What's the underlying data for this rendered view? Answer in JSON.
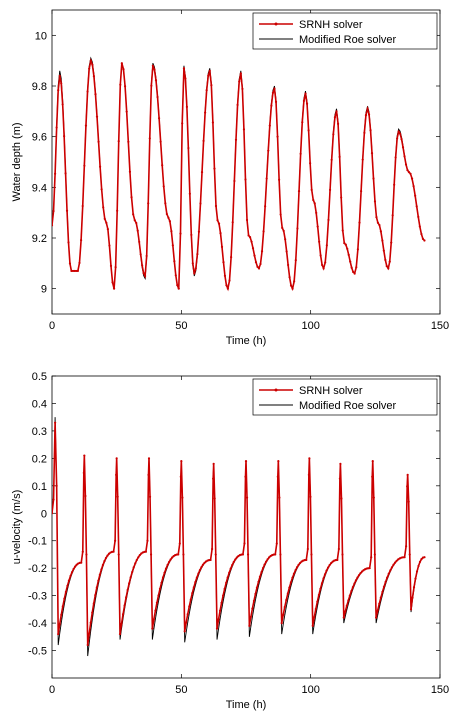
{
  "colors": {
    "srnh": "#cc0000",
    "roe": "#000000",
    "axis": "#000000",
    "background": "#ffffff"
  },
  "chart_data": [
    {
      "type": "line",
      "xlabel": "Time (h)",
      "ylabel": "Water depth (m)",
      "xlim": [
        0,
        150
      ],
      "ylim": [
        8.9,
        10.1
      ],
      "xticks": [
        0,
        50,
        100,
        150
      ],
      "yticks": [
        9,
        9.2,
        9.4,
        9.6,
        9.8,
        10
      ],
      "x_tick_labels": [
        "0",
        "50",
        "100",
        "150"
      ],
      "y_tick_labels": [
        "9",
        "9.2",
        "9.4",
        "9.6",
        "9.8",
        "10"
      ],
      "grid": false,
      "legend_position": "top-right",
      "x_end": 144,
      "series": [
        {
          "name": "SRNH solver",
          "style": "line-with-dot-markers",
          "x": [
            0,
            3,
            7.5,
            10,
            15,
            21,
            24,
            27,
            32,
            36,
            39,
            45,
            49,
            51,
            55,
            61,
            64,
            68,
            73,
            76,
            80,
            86,
            89,
            93,
            98,
            101,
            105,
            110,
            113,
            117,
            122,
            126,
            130,
            134,
            138,
            144
          ],
          "y": [
            9.25,
            9.84,
            9.07,
            9.07,
            9.9,
            9.26,
            9.0,
            9.89,
            9.27,
            9.05,
            9.88,
            9.28,
            9.0,
            9.87,
            9.06,
            9.86,
            9.27,
            9.0,
            9.85,
            9.21,
            9.08,
            9.79,
            9.24,
            9.0,
            9.77,
            9.35,
            9.08,
            9.7,
            9.18,
            9.06,
            9.71,
            9.26,
            9.08,
            9.62,
            9.46,
            9.19
          ]
        },
        {
          "name": "Modified Roe solver",
          "style": "solid-line",
          "x": [
            0,
            3,
            7.5,
            10,
            15,
            21,
            24,
            27,
            32,
            36,
            39,
            45,
            49,
            51,
            55,
            61,
            64,
            68,
            73,
            76,
            80,
            86,
            89,
            93,
            98,
            101,
            105,
            110,
            113,
            117,
            122,
            126,
            130,
            134,
            138,
            144
          ],
          "y": [
            9.25,
            9.86,
            9.07,
            9.07,
            9.91,
            9.26,
            9.0,
            9.89,
            9.27,
            9.04,
            9.89,
            9.28,
            9.0,
            9.88,
            9.05,
            9.87,
            9.27,
            9.0,
            9.86,
            9.21,
            9.08,
            9.8,
            9.24,
            9.0,
            9.78,
            9.35,
            9.08,
            9.71,
            9.18,
            9.06,
            9.72,
            9.26,
            9.08,
            9.63,
            9.46,
            9.19
          ]
        }
      ]
    },
    {
      "type": "line",
      "xlabel": "Time (h)",
      "ylabel": "u-velocity (m/s)",
      "xlim": [
        0,
        150
      ],
      "ylim": [
        -0.6,
        0.5
      ],
      "xticks": [
        0,
        50,
        100,
        150
      ],
      "yticks": [
        -0.5,
        -0.4,
        -0.3,
        -0.2,
        -0.1,
        0,
        0.1,
        0.2,
        0.3,
        0.4,
        0.5
      ],
      "x_tick_labels": [
        "0",
        "50",
        "100",
        "150"
      ],
      "y_tick_labels": [
        "-0.5",
        "-0.4",
        "-0.3",
        "-0.2",
        "-0.1",
        "0",
        "0.1",
        "0.2",
        "0.3",
        "0.4",
        "0.5"
      ],
      "grid": false,
      "legend_position": "top-right",
      "spike_times": [
        12.5,
        25,
        37.5,
        50,
        62.5,
        75,
        87.5,
        99.5,
        111.5,
        124,
        137.5
      ],
      "spike_peaks": [
        0.21,
        0.2,
        0.2,
        0.19,
        0.18,
        0.19,
        0.19,
        0.2,
        0.18,
        0.19,
        0.14
      ],
      "series": [
        {
          "name": "SRNH solver",
          "style": "line-with-dot-markers",
          "initial_peak": 0.33,
          "min_values": [
            -0.44,
            -0.48,
            -0.44,
            -0.42,
            -0.43,
            -0.42,
            -0.41,
            -0.4,
            -0.41,
            -0.38,
            -0.38,
            -0.35
          ],
          "pre_spike_values": [
            -0.18,
            -0.14,
            -0.14,
            -0.15,
            -0.17,
            -0.15,
            -0.15,
            -0.17,
            -0.17,
            -0.2,
            -0.16,
            -0.16
          ]
        },
        {
          "name": "Modified Roe solver",
          "style": "solid-line",
          "initial_peak": 0.35,
          "min_values": [
            -0.48,
            -0.52,
            -0.46,
            -0.46,
            -0.47,
            -0.46,
            -0.45,
            -0.44,
            -0.44,
            -0.4,
            -0.4,
            -0.36
          ],
          "pre_spike_values": [
            -0.18,
            -0.14,
            -0.14,
            -0.15,
            -0.17,
            -0.15,
            -0.15,
            -0.17,
            -0.17,
            -0.2,
            -0.16,
            -0.16
          ]
        }
      ]
    }
  ]
}
